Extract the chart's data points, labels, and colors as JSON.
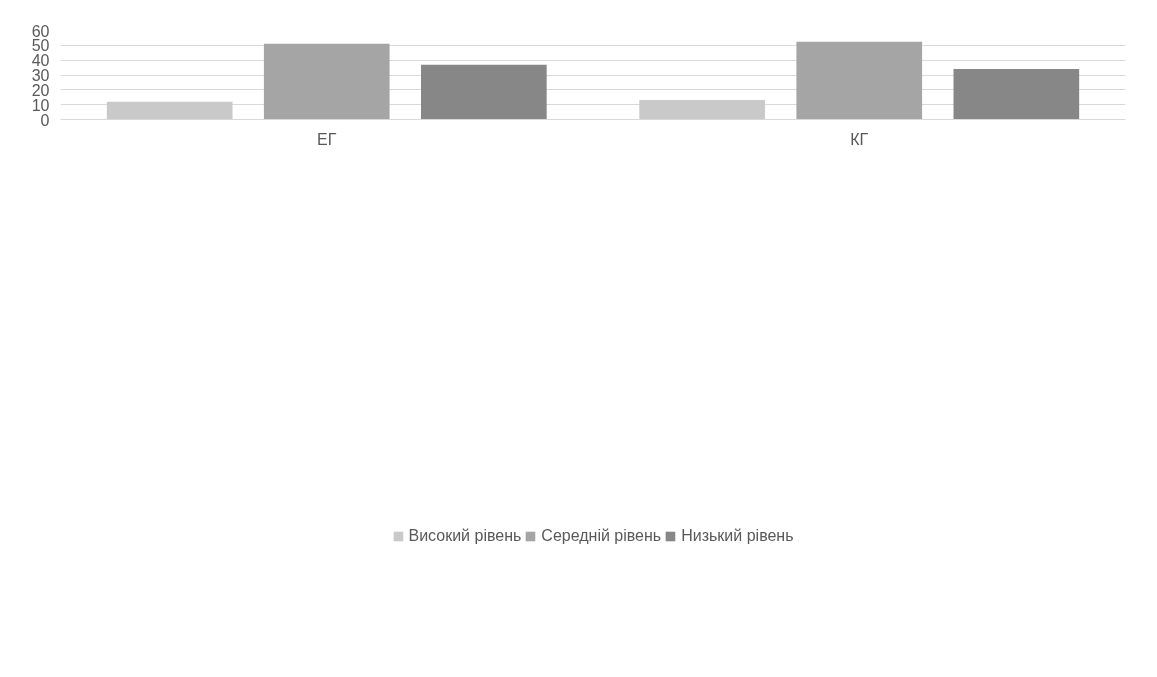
{
  "chart_data": {
    "type": "bar",
    "categories": [
      "ЕГ",
      "КГ"
    ],
    "series": [
      {
        "name": "Високий рівень",
        "color": "#c9c9c9",
        "values": [
          11.9,
          13.1
        ]
      },
      {
        "name": "Середній рівень",
        "color": "#a5a5a5",
        "values": [
          51.1,
          52.4
        ]
      },
      {
        "name": "Низький рівень",
        "color": "#878787",
        "values": [
          36.9,
          34.1
        ]
      }
    ],
    "ylim": [
      0,
      60
    ],
    "yticks": [
      0,
      10,
      20,
      30,
      40,
      50,
      60
    ],
    "grid": "y",
    "legend": "bottom"
  }
}
